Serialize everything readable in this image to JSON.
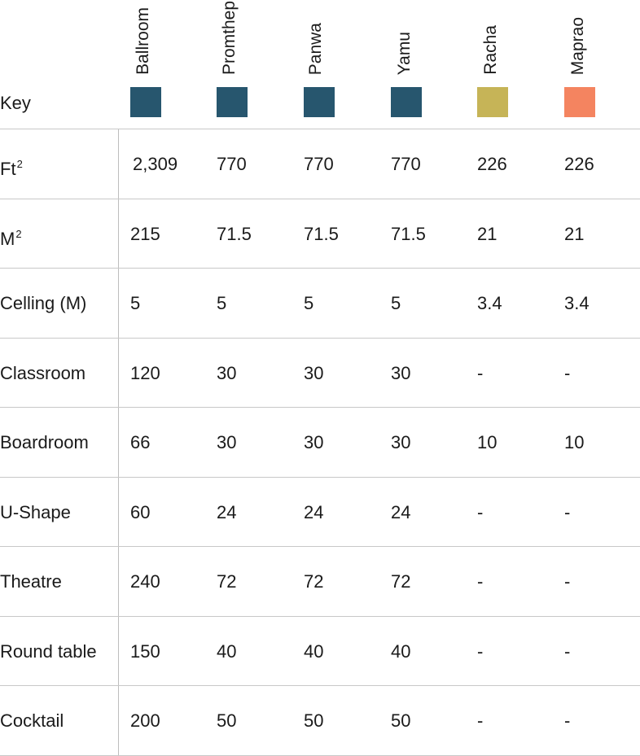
{
  "key_label": "Key",
  "columns": [
    {
      "name": "Ballroom",
      "color": "#27566e"
    },
    {
      "name": "Promthep",
      "color": "#27566e"
    },
    {
      "name": "Panwa",
      "color": "#27566e"
    },
    {
      "name": "Yamu",
      "color": "#27566e"
    },
    {
      "name": "Racha",
      "color": "#c6b457"
    },
    {
      "name": "Maprao",
      "color": "#f48460"
    }
  ],
  "rows": [
    {
      "label": "Ft",
      "label_sup": "2",
      "values": [
        "2,309",
        "770",
        "770",
        "770",
        "226",
        "226"
      ]
    },
    {
      "label": "M",
      "label_sup": "2",
      "values": [
        "215",
        "71.5",
        "71.5",
        "71.5",
        "21",
        "21"
      ]
    },
    {
      "label": "Celling (M)",
      "values": [
        "5",
        "5",
        "5",
        "5",
        "3.4",
        "3.4"
      ]
    },
    {
      "label": "Classroom",
      "values": [
        "120",
        "30",
        "30",
        "30",
        "-",
        "-"
      ]
    },
    {
      "label": "Boardroom",
      "values": [
        "66",
        "30",
        "30",
        "30",
        "10",
        "10"
      ]
    },
    {
      "label": "U-Shape",
      "values": [
        "60",
        "24",
        "24",
        "24",
        "-",
        "-"
      ]
    },
    {
      "label": "Theatre",
      "values": [
        "240",
        "72",
        "72",
        "72",
        "-",
        "-"
      ]
    },
    {
      "label": "Round table",
      "values": [
        "150",
        "40",
        "40",
        "40",
        "-",
        "-"
      ]
    },
    {
      "label": "Cocktail",
      "values": [
        "200",
        "50",
        "50",
        "50",
        "-",
        "-"
      ]
    }
  ]
}
